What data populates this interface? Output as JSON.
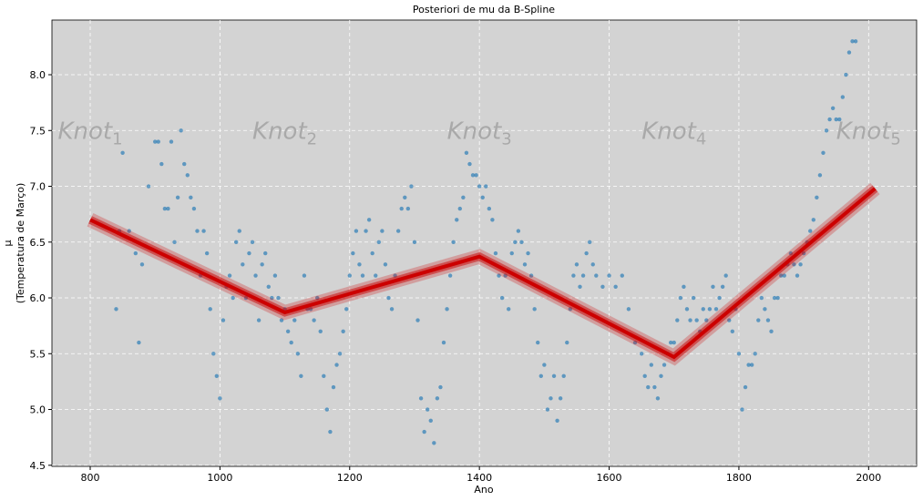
{
  "chart_data": {
    "type": "scatter",
    "title": "Posteriori de mu da B-Spline",
    "x_label": "Ano",
    "y_label": [
      "μ",
      "(Temperatura de Março)"
    ],
    "xlim": [
      741,
      2074
    ],
    "ylim": [
      4.49,
      8.49
    ],
    "xticks": [
      800,
      1000,
      1200,
      1400,
      1600,
      1800,
      2000
    ],
    "yticks": [
      4.5,
      {
        "value": 5,
        "label": "5.0"
      },
      5.5,
      {
        "value": 6,
        "label": "6.0"
      },
      6.5,
      {
        "value": 7,
        "label": "7.0"
      },
      7.5,
      {
        "value": 8,
        "label": "8.0"
      }
    ],
    "grid": true,
    "background": "#d3d3d3",
    "annotations": [
      {
        "text": "Knot",
        "sub": "1",
        "x": 800,
        "y": 7.5
      },
      {
        "text": "Knot",
        "sub": "2",
        "x": 1100,
        "y": 7.5
      },
      {
        "text": "Knot",
        "sub": "3",
        "x": 1400,
        "y": 7.5
      },
      {
        "text": "Knot",
        "sub": "4",
        "x": 1700,
        "y": 7.5
      },
      {
        "text": "Knot",
        "sub": "5",
        "x": 2000,
        "y": 7.5
      }
    ],
    "series": [
      {
        "type": "scatter",
        "color": "#1f77b4",
        "x": [
          840,
          845,
          850,
          860,
          870,
          875,
          880,
          890,
          900,
          905,
          910,
          915,
          920,
          925,
          930,
          935,
          940,
          945,
          950,
          955,
          960,
          965,
          970,
          975,
          980,
          985,
          990,
          995,
          1000,
          1005,
          1010,
          1015,
          1020,
          1025,
          1030,
          1035,
          1040,
          1045,
          1050,
          1055,
          1060,
          1065,
          1070,
          1075,
          1080,
          1085,
          1090,
          1095,
          1100,
          1105,
          1110,
          1115,
          1120,
          1125,
          1130,
          1135,
          1140,
          1145,
          1150,
          1155,
          1160,
          1165,
          1170,
          1175,
          1180,
          1185,
          1190,
          1195,
          1200,
          1205,
          1210,
          1215,
          1220,
          1225,
          1230,
          1235,
          1240,
          1245,
          1250,
          1255,
          1260,
          1265,
          1270,
          1275,
          1280,
          1285,
          1290,
          1295,
          1300,
          1305,
          1310,
          1315,
          1320,
          1325,
          1330,
          1335,
          1340,
          1345,
          1350,
          1355,
          1360,
          1365,
          1370,
          1375,
          1380,
          1385,
          1390,
          1395,
          1400,
          1405,
          1410,
          1415,
          1420,
          1425,
          1430,
          1435,
          1440,
          1445,
          1450,
          1455,
          1460,
          1465,
          1470,
          1475,
          1480,
          1485,
          1490,
          1495,
          1500,
          1505,
          1510,
          1515,
          1520,
          1525,
          1530,
          1535,
          1540,
          1545,
          1550,
          1555,
          1560,
          1565,
          1570,
          1575,
          1580,
          1590,
          1600,
          1610,
          1620,
          1630,
          1640,
          1650,
          1655,
          1660,
          1665,
          1670,
          1675,
          1680,
          1685,
          1690,
          1695,
          1700,
          1705,
          1710,
          1715,
          1720,
          1725,
          1730,
          1735,
          1740,
          1745,
          1750,
          1755,
          1760,
          1765,
          1770,
          1775,
          1780,
          1785,
          1790,
          1795,
          1800,
          1805,
          1810,
          1815,
          1820,
          1825,
          1830,
          1835,
          1840,
          1845,
          1850,
          1855,
          1860,
          1865,
          1870,
          1875,
          1880,
          1885,
          1890,
          1895,
          1900,
          1905,
          1910,
          1915,
          1920,
          1925,
          1930,
          1935,
          1940,
          1945,
          1950,
          1955,
          1960,
          1965,
          1970,
          1975,
          1980
        ],
        "values": [
          5.9,
          6.6,
          7.3,
          6.6,
          6.4,
          5.6,
          6.3,
          7.0,
          7.4,
          7.4,
          7.2,
          6.8,
          6.8,
          7.4,
          6.5,
          6.9,
          7.5,
          7.2,
          7.1,
          6.9,
          6.8,
          6.6,
          6.2,
          6.6,
          6.4,
          5.9,
          5.5,
          5.3,
          5.1,
          5.8,
          6.1,
          6.2,
          6.0,
          6.5,
          6.6,
          6.3,
          6.0,
          6.4,
          6.5,
          6.2,
          5.8,
          6.3,
          6.4,
          6.1,
          6.0,
          6.2,
          6.0,
          5.8,
          5.9,
          5.7,
          5.6,
          5.8,
          5.5,
          5.3,
          6.2,
          5.9,
          5.9,
          5.8,
          6.0,
          5.7,
          5.3,
          5.0,
          4.8,
          5.2,
          5.4,
          5.5,
          5.7,
          5.9,
          6.2,
          6.4,
          6.6,
          6.3,
          6.2,
          6.6,
          6.7,
          6.4,
          6.2,
          6.5,
          6.6,
          6.3,
          6.0,
          5.9,
          6.2,
          6.6,
          6.8,
          6.9,
          6.8,
          7.0,
          6.5,
          5.8,
          5.1,
          4.8,
          5.0,
          4.9,
          4.7,
          5.1,
          5.2,
          5.6,
          5.9,
          6.2,
          6.5,
          6.7,
          6.8,
          6.9,
          7.3,
          7.2,
          7.1,
          7.1,
          7.0,
          6.9,
          7.0,
          6.8,
          6.7,
          6.4,
          6.2,
          6.0,
          6.2,
          5.9,
          6.4,
          6.5,
          6.6,
          6.5,
          6.3,
          6.4,
          6.2,
          5.9,
          5.6,
          5.3,
          5.4,
          5.0,
          5.1,
          5.3,
          4.9,
          5.1,
          5.3,
          5.6,
          5.9,
          6.2,
          6.3,
          6.1,
          6.2,
          6.4,
          6.5,
          6.3,
          6.2,
          6.1,
          6.2,
          6.1,
          6.2,
          5.9,
          5.6,
          5.5,
          5.3,
          5.2,
          5.4,
          5.2,
          5.1,
          5.3,
          5.4,
          5.5,
          5.6,
          5.6,
          5.8,
          6.0,
          6.1,
          5.9,
          5.8,
          6.0,
          5.8,
          5.7,
          5.9,
          5.8,
          5.9,
          6.1,
          5.9,
          6.0,
          6.1,
          6.2,
          5.8,
          5.7,
          5.9,
          5.5,
          5.0,
          5.2,
          5.4,
          5.4,
          5.5,
          5.8,
          6.0,
          5.9,
          5.8,
          5.7,
          6.0,
          6.0,
          6.2,
          6.2,
          6.3,
          6.4,
          6.3,
          6.2,
          6.3,
          6.4,
          6.5,
          6.6,
          6.7,
          6.9,
          7.1,
          7.3,
          7.5,
          7.6,
          7.7,
          7.6,
          7.6,
          7.8,
          8.0,
          8.2,
          8.3,
          8.3
        ]
      },
      {
        "type": "line",
        "color": "#cc0000",
        "x": [
          800,
          1100,
          1400,
          1700,
          2010
        ],
        "values": [
          6.7,
          5.87,
          6.37,
          5.47,
          6.98
        ]
      }
    ]
  }
}
